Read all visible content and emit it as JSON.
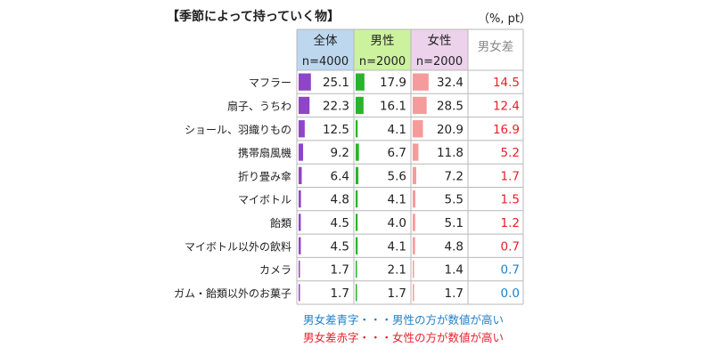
{
  "title": "【季節によって持っていく物】",
  "unit": "（%, pt）",
  "chart_data": {
    "type": "table",
    "title": "【季節によって持っていく物】",
    "columns": [
      {
        "name": "全体",
        "n": "n=4000",
        "color": "#8e45c9",
        "header_bg": "#bdd7ee"
      },
      {
        "name": "男性",
        "n": "n=2000",
        "color": "#2bb32b",
        "header_bg": "#ccf29e"
      },
      {
        "name": "女性",
        "n": "n=2000",
        "color": "#f59b9b",
        "header_bg": "#ecd2ea"
      }
    ],
    "diff_header": "男女差",
    "categories": [
      "マフラー",
      "扇子、うちわ",
      "ショール、羽織りもの",
      "携帯扇風機",
      "折り畳み傘",
      "マイボトル",
      "飴類",
      "マイボトル以外の飲料",
      "カメラ",
      "ガム・飴類以外のお菓子"
    ],
    "series": [
      {
        "name": "全体",
        "values": [
          25.1,
          22.3,
          12.5,
          9.2,
          6.4,
          4.8,
          4.5,
          4.5,
          1.7,
          1.7
        ]
      },
      {
        "name": "男性",
        "values": [
          17.9,
          16.1,
          4.1,
          6.7,
          5.6,
          4.1,
          4.0,
          4.1,
          2.1,
          1.7
        ]
      },
      {
        "name": "女性",
        "values": [
          32.4,
          28.5,
          20.9,
          11.8,
          7.2,
          5.5,
          5.1,
          4.8,
          1.4,
          1.7
        ]
      }
    ],
    "diff": [
      14.5,
      12.4,
      16.9,
      5.2,
      1.7,
      1.5,
      1.2,
      0.7,
      0.7,
      0.0
    ],
    "diff_color": [
      "red",
      "red",
      "red",
      "red",
      "red",
      "red",
      "red",
      "red",
      "blue",
      "blue"
    ],
    "colors": {
      "red": "#e8202a",
      "blue": "#1f7fc9"
    },
    "bar_max": 40
  },
  "notes": {
    "blue": "男女差青字・・・男性の方が数値が高い",
    "red": "男女差赤字・・・女性の方が数値が高い"
  }
}
